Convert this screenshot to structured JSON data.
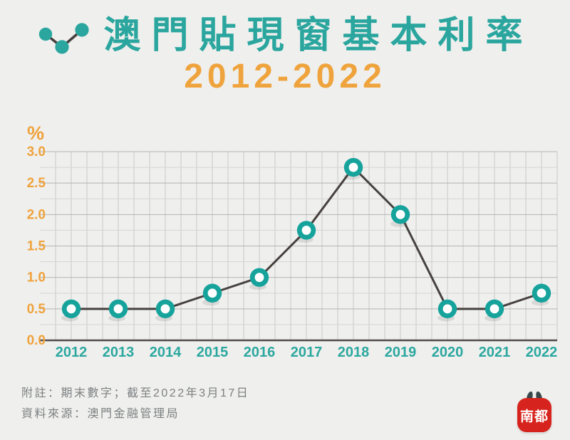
{
  "header": {
    "title": "澳門貼現窗基本利率",
    "subtitle": "2012-2022"
  },
  "footer": {
    "note": "附註：期末數字；截至2022年3月17日",
    "source": "資料來源：澳門金融管理局"
  },
  "logo": {
    "text": "南都"
  },
  "colors": {
    "background": "#efefee",
    "title_teal": "#2aa69e",
    "orange": "#efa33c",
    "axis_label_teal": "#2ca89f",
    "marker_teal": "#16a39c",
    "marker_center": "#ffffff",
    "data_line": "#46413e",
    "grid_minor": "#d5d5d4",
    "grid_major": "#b4b4b3",
    "grid_vertical": "#c8c8c7",
    "axis_line": "#514c4a",
    "footer_text": "#7c8080",
    "logo_red": "#d7231d"
  },
  "chart_data": {
    "type": "line",
    "title": "澳門貼現窗基本利率",
    "subtitle": "2012-2022",
    "unit_label": "%",
    "categories": [
      "2012",
      "2013",
      "2014",
      "2015",
      "2016",
      "2017",
      "2018",
      "2019",
      "2020",
      "2021",
      "2022"
    ],
    "values": [
      0.5,
      0.5,
      0.5,
      0.75,
      1.0,
      1.75,
      2.75,
      2.0,
      0.5,
      0.5,
      0.75
    ],
    "xlabel": "",
    "ylabel": "%",
    "ylim": [
      0,
      3.0
    ],
    "ytick_step": 0.5,
    "ytick_labels": [
      "0.0",
      "0.5",
      "1.0",
      "1.5",
      "2.0",
      "2.5",
      "3.0"
    ],
    "minor_grid_step": 0.25,
    "grid": true,
    "legend": false
  }
}
